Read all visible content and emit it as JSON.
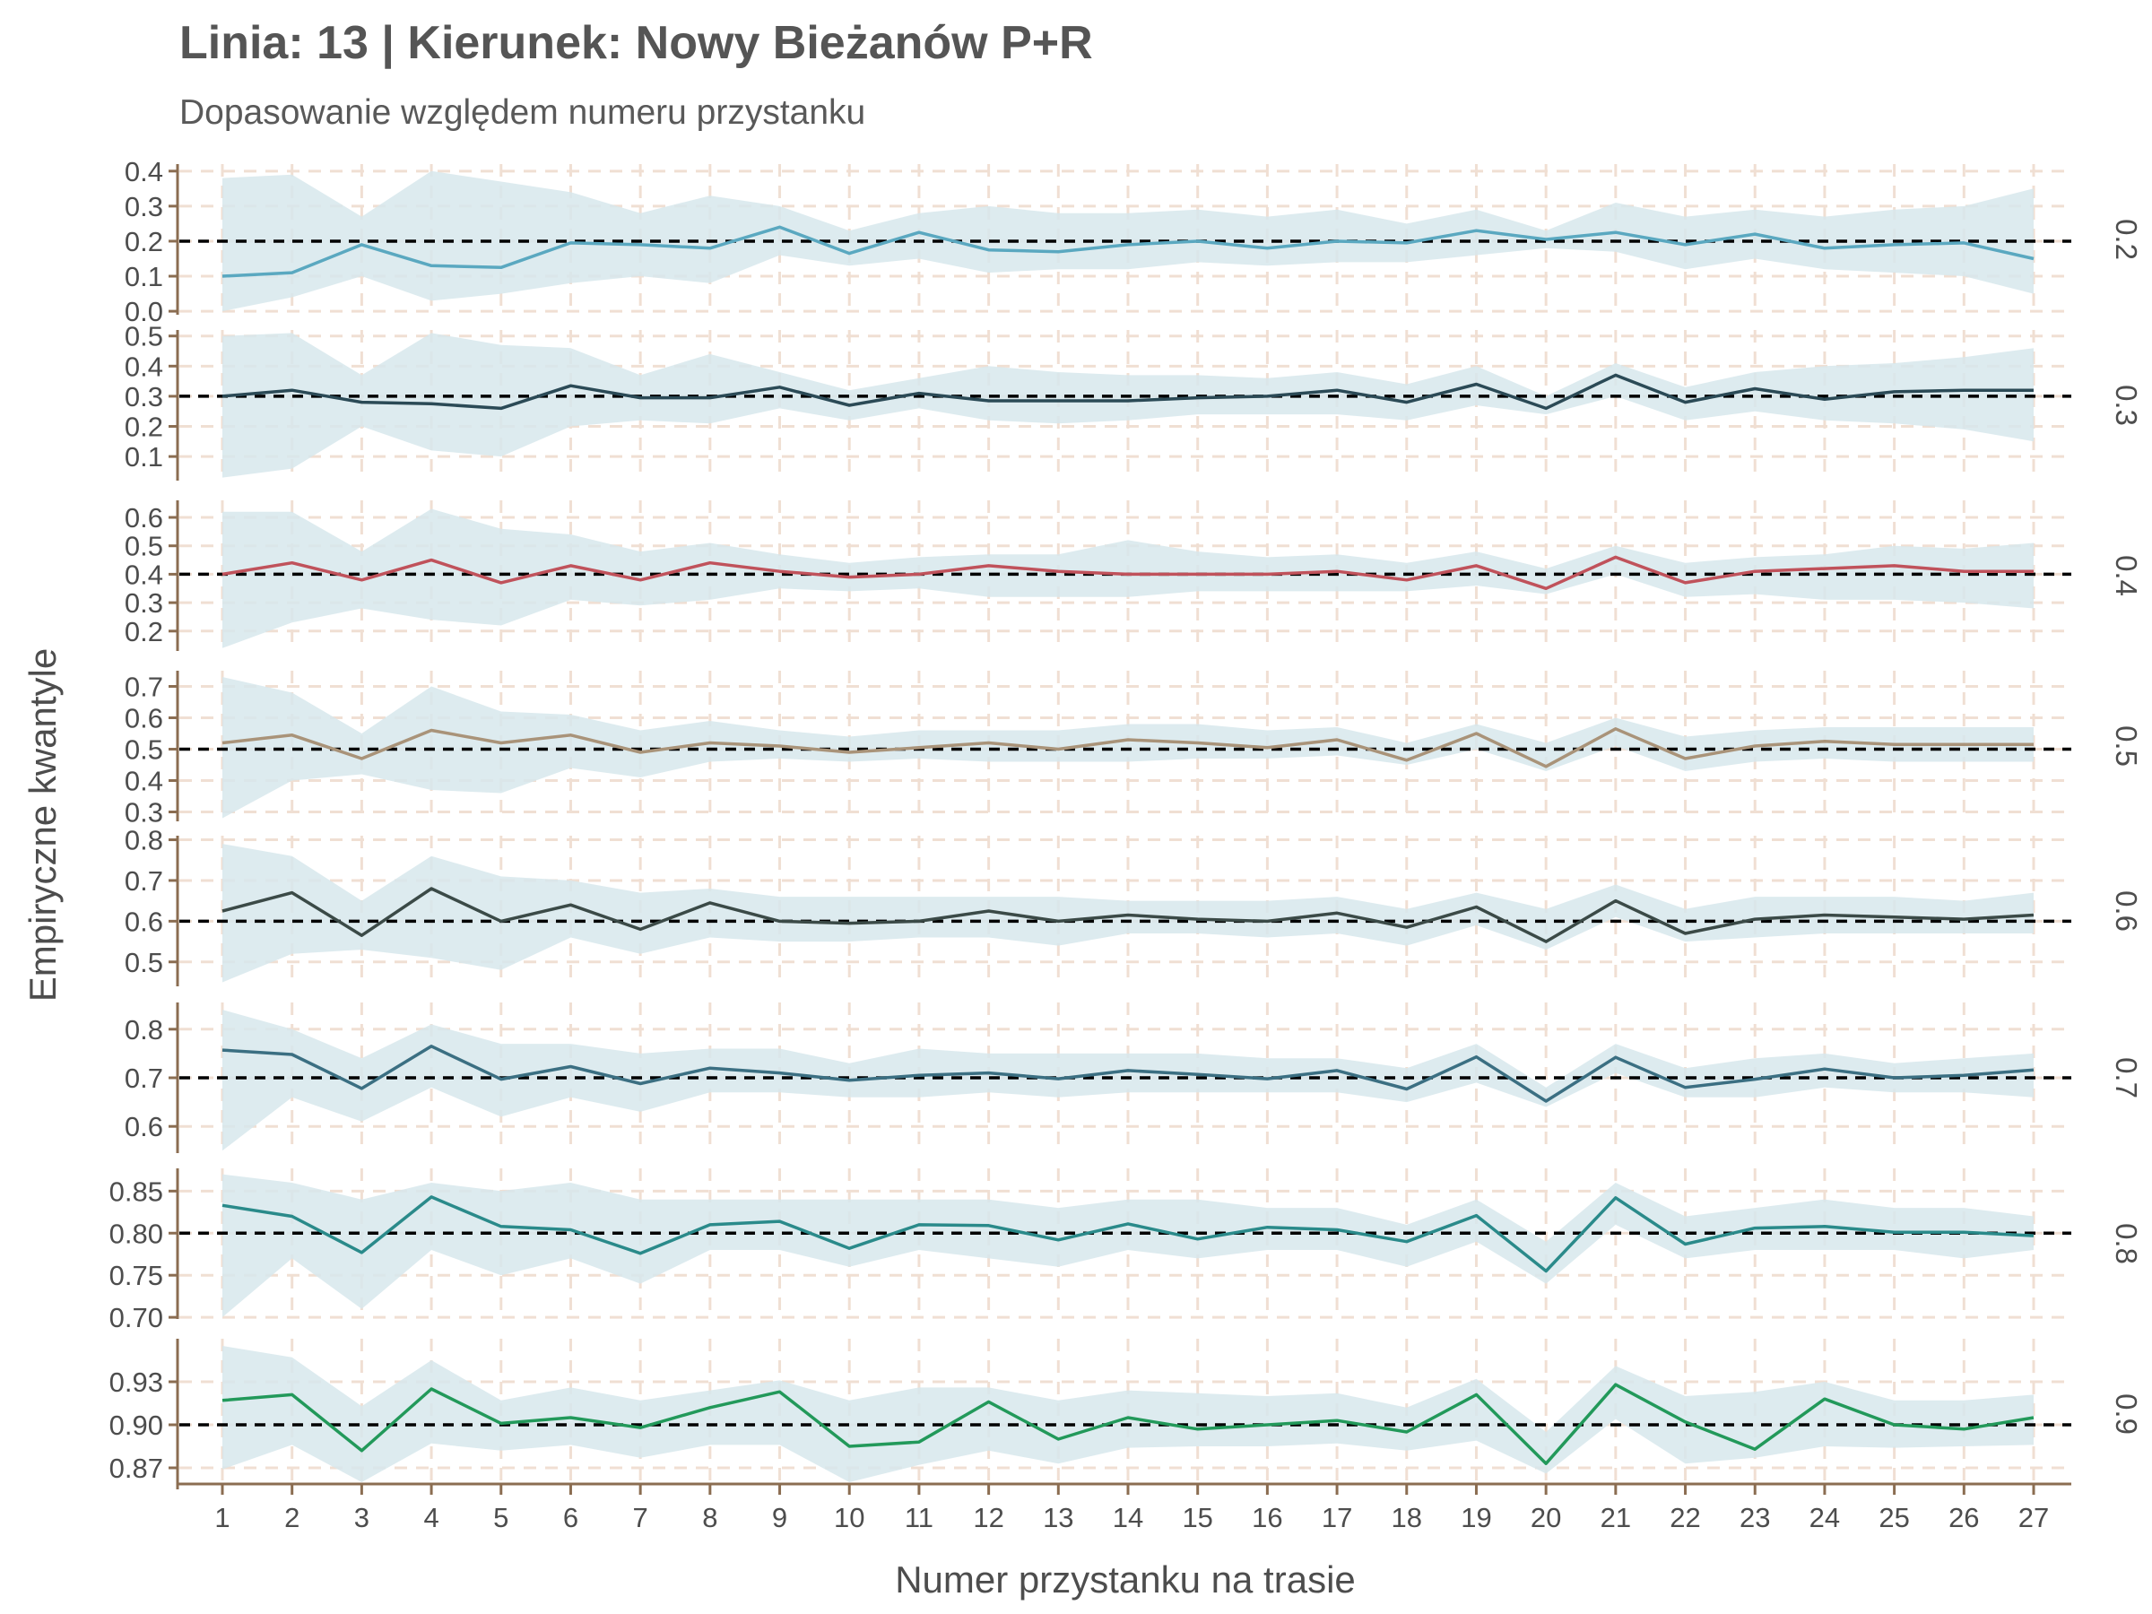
{
  "title": "Linia: 13 | Kierunek: Nowy Bieżanów P+R",
  "subtitle": "Dopasowanie względem numeru przystanku",
  "colors": {
    "band": "#d7e8ec",
    "reference_line": "#000000",
    "grid": "#f0dfd3",
    "axis": "#8b6d51",
    "text": "#4d4d4d"
  },
  "chart_data": {
    "type": "line",
    "xlabel": "Numer przystanku na trasie",
    "ylabel": "Empiryczne kwantyle",
    "x": [
      1,
      2,
      3,
      4,
      5,
      6,
      7,
      8,
      9,
      10,
      11,
      12,
      13,
      14,
      15,
      16,
      17,
      18,
      19,
      20,
      21,
      22,
      23,
      24,
      25,
      26,
      27
    ],
    "x_tick_labels": [
      "1",
      "2",
      "3",
      "4",
      "5",
      "6",
      "7",
      "8",
      "9",
      "10",
      "11",
      "12",
      "13",
      "14",
      "15",
      "16",
      "17",
      "18",
      "19",
      "20",
      "21",
      "22",
      "23",
      "24",
      "25",
      "26",
      "27"
    ],
    "grid": true,
    "legend": "none",
    "panels": [
      {
        "strip": "0.2",
        "reference": 0.2,
        "color": "#5aa8c0",
        "ylim": [
          -0.01,
          0.42
        ],
        "y_ticks": [
          0.0,
          0.1,
          0.2,
          0.3,
          0.4
        ],
        "y_tick_labels": [
          "0.0",
          "0.1",
          "0.2",
          "0.3",
          "0.4"
        ],
        "values": [
          0.1,
          0.11,
          0.19,
          0.13,
          0.125,
          0.195,
          0.19,
          0.18,
          0.24,
          0.165,
          0.225,
          0.175,
          0.17,
          0.19,
          0.2,
          0.18,
          0.2,
          0.195,
          0.23,
          0.205,
          0.225,
          0.19,
          0.22,
          0.18,
          0.19,
          0.195,
          0.15
        ],
        "lower": [
          0.0,
          0.04,
          0.1,
          0.03,
          0.05,
          0.08,
          0.1,
          0.08,
          0.16,
          0.13,
          0.15,
          0.11,
          0.12,
          0.12,
          0.14,
          0.13,
          0.14,
          0.14,
          0.16,
          0.18,
          0.17,
          0.12,
          0.15,
          0.12,
          0.11,
          0.1,
          0.05
        ],
        "upper": [
          0.38,
          0.39,
          0.27,
          0.4,
          0.37,
          0.34,
          0.28,
          0.33,
          0.3,
          0.23,
          0.28,
          0.3,
          0.28,
          0.28,
          0.29,
          0.27,
          0.29,
          0.25,
          0.29,
          0.23,
          0.31,
          0.27,
          0.29,
          0.27,
          0.29,
          0.3,
          0.35
        ]
      },
      {
        "strip": "0.3",
        "reference": 0.3,
        "color": "#2b4a56",
        "ylim": [
          0.02,
          0.52
        ],
        "y_ticks": [
          0.1,
          0.2,
          0.3,
          0.4,
          0.5
        ],
        "y_tick_labels": [
          "0.1",
          "0.2",
          "0.3",
          "0.4",
          "0.5"
        ],
        "values": [
          0.3,
          0.32,
          0.28,
          0.275,
          0.26,
          0.335,
          0.295,
          0.295,
          0.33,
          0.27,
          0.31,
          0.285,
          0.285,
          0.285,
          0.295,
          0.3,
          0.32,
          0.28,
          0.34,
          0.26,
          0.37,
          0.28,
          0.325,
          0.29,
          0.315,
          0.32,
          0.32
        ],
        "lower": [
          0.03,
          0.06,
          0.2,
          0.12,
          0.1,
          0.2,
          0.22,
          0.21,
          0.26,
          0.22,
          0.26,
          0.22,
          0.21,
          0.22,
          0.24,
          0.24,
          0.24,
          0.22,
          0.27,
          0.24,
          0.3,
          0.22,
          0.25,
          0.22,
          0.21,
          0.19,
          0.15
        ],
        "upper": [
          0.5,
          0.51,
          0.37,
          0.51,
          0.47,
          0.46,
          0.37,
          0.44,
          0.38,
          0.32,
          0.36,
          0.4,
          0.38,
          0.37,
          0.37,
          0.36,
          0.38,
          0.34,
          0.4,
          0.3,
          0.41,
          0.33,
          0.38,
          0.4,
          0.41,
          0.43,
          0.46
        ]
      },
      {
        "strip": "0.4",
        "reference": 0.4,
        "color": "#c0525b",
        "ylim": [
          0.13,
          0.66
        ],
        "y_ticks": [
          0.2,
          0.3,
          0.4,
          0.5,
          0.6
        ],
        "y_tick_labels": [
          "0.2",
          "0.3",
          "0.4",
          "0.5",
          "0.6"
        ],
        "values": [
          0.4,
          0.44,
          0.38,
          0.45,
          0.37,
          0.43,
          0.38,
          0.44,
          0.41,
          0.39,
          0.4,
          0.43,
          0.41,
          0.4,
          0.4,
          0.4,
          0.41,
          0.38,
          0.43,
          0.35,
          0.46,
          0.37,
          0.41,
          0.42,
          0.43,
          0.41,
          0.41
        ],
        "lower": [
          0.14,
          0.23,
          0.28,
          0.24,
          0.22,
          0.31,
          0.29,
          0.31,
          0.35,
          0.34,
          0.35,
          0.32,
          0.32,
          0.32,
          0.34,
          0.34,
          0.34,
          0.34,
          0.36,
          0.33,
          0.4,
          0.32,
          0.33,
          0.31,
          0.31,
          0.3,
          0.28
        ],
        "upper": [
          0.62,
          0.62,
          0.48,
          0.63,
          0.56,
          0.54,
          0.48,
          0.51,
          0.47,
          0.44,
          0.46,
          0.47,
          0.47,
          0.52,
          0.48,
          0.46,
          0.47,
          0.44,
          0.48,
          0.42,
          0.5,
          0.44,
          0.46,
          0.47,
          0.5,
          0.49,
          0.51
        ]
      },
      {
        "strip": "0.5",
        "reference": 0.5,
        "color": "#a99379",
        "ylim": [
          0.27,
          0.75
        ],
        "y_ticks": [
          0.3,
          0.4,
          0.5,
          0.6,
          0.7
        ],
        "y_tick_labels": [
          "0.3",
          "0.4",
          "0.5",
          "0.6",
          "0.7"
        ],
        "values": [
          0.52,
          0.545,
          0.47,
          0.56,
          0.52,
          0.545,
          0.49,
          0.52,
          0.51,
          0.49,
          0.505,
          0.52,
          0.5,
          0.53,
          0.52,
          0.505,
          0.53,
          0.465,
          0.55,
          0.445,
          0.565,
          0.47,
          0.51,
          0.525,
          0.515,
          0.515,
          0.515
        ],
        "lower": [
          0.28,
          0.4,
          0.42,
          0.37,
          0.36,
          0.44,
          0.41,
          0.46,
          0.47,
          0.46,
          0.47,
          0.46,
          0.46,
          0.46,
          0.47,
          0.47,
          0.48,
          0.45,
          0.5,
          0.43,
          0.51,
          0.43,
          0.46,
          0.47,
          0.46,
          0.46,
          0.46
        ],
        "upper": [
          0.73,
          0.68,
          0.55,
          0.7,
          0.62,
          0.61,
          0.56,
          0.59,
          0.56,
          0.54,
          0.56,
          0.56,
          0.56,
          0.58,
          0.58,
          0.56,
          0.57,
          0.52,
          0.58,
          0.52,
          0.6,
          0.54,
          0.56,
          0.57,
          0.57,
          0.57,
          0.57
        ]
      },
      {
        "strip": "0.6",
        "reference": 0.6,
        "color": "#3b4a47",
        "ylim": [
          0.44,
          0.81
        ],
        "y_ticks": [
          0.5,
          0.6,
          0.7,
          0.8
        ],
        "y_tick_labels": [
          "0.5",
          "0.6",
          "0.7",
          "0.8"
        ],
        "values": [
          0.625,
          0.67,
          0.565,
          0.68,
          0.6,
          0.64,
          0.58,
          0.645,
          0.6,
          0.595,
          0.6,
          0.625,
          0.6,
          0.615,
          0.605,
          0.6,
          0.62,
          0.585,
          0.635,
          0.55,
          0.65,
          0.57,
          0.605,
          0.615,
          0.61,
          0.605,
          0.615
        ],
        "lower": [
          0.45,
          0.52,
          0.53,
          0.51,
          0.48,
          0.56,
          0.52,
          0.56,
          0.55,
          0.55,
          0.56,
          0.56,
          0.54,
          0.57,
          0.57,
          0.56,
          0.57,
          0.54,
          0.59,
          0.53,
          0.61,
          0.55,
          0.56,
          0.57,
          0.57,
          0.57,
          0.57
        ],
        "upper": [
          0.79,
          0.76,
          0.65,
          0.76,
          0.71,
          0.7,
          0.67,
          0.68,
          0.66,
          0.66,
          0.66,
          0.66,
          0.66,
          0.65,
          0.65,
          0.65,
          0.66,
          0.63,
          0.67,
          0.63,
          0.69,
          0.63,
          0.66,
          0.66,
          0.66,
          0.65,
          0.67
        ]
      },
      {
        "strip": "0.7",
        "reference": 0.7,
        "color": "#3b6f82",
        "ylim": [
          0.545,
          0.855
        ],
        "y_ticks": [
          0.6,
          0.7,
          0.8
        ],
        "y_tick_labels": [
          "0.6",
          "0.7",
          "0.8"
        ],
        "values": [
          0.757,
          0.748,
          0.678,
          0.765,
          0.697,
          0.723,
          0.688,
          0.72,
          0.71,
          0.695,
          0.705,
          0.71,
          0.698,
          0.715,
          0.707,
          0.698,
          0.715,
          0.677,
          0.743,
          0.652,
          0.742,
          0.68,
          0.697,
          0.718,
          0.7,
          0.705,
          0.716
        ],
        "lower": [
          0.55,
          0.66,
          0.61,
          0.68,
          0.62,
          0.66,
          0.63,
          0.67,
          0.67,
          0.66,
          0.66,
          0.67,
          0.66,
          0.67,
          0.67,
          0.67,
          0.67,
          0.65,
          0.69,
          0.64,
          0.71,
          0.66,
          0.66,
          0.68,
          0.67,
          0.67,
          0.66
        ],
        "upper": [
          0.84,
          0.8,
          0.74,
          0.81,
          0.77,
          0.77,
          0.75,
          0.76,
          0.76,
          0.73,
          0.76,
          0.75,
          0.75,
          0.75,
          0.75,
          0.74,
          0.74,
          0.72,
          0.77,
          0.68,
          0.77,
          0.72,
          0.74,
          0.75,
          0.73,
          0.74,
          0.75
        ]
      },
      {
        "strip": "0.8",
        "reference": 0.8,
        "color": "#2a8a8a",
        "ylim": [
          0.698,
          0.877
        ],
        "y_ticks": [
          0.7,
          0.75,
          0.8,
          0.85
        ],
        "y_tick_labels": [
          "0.70",
          "0.75",
          "0.80",
          "0.85"
        ],
        "values": [
          0.833,
          0.82,
          0.777,
          0.843,
          0.808,
          0.804,
          0.776,
          0.81,
          0.814,
          0.782,
          0.81,
          0.809,
          0.792,
          0.811,
          0.793,
          0.807,
          0.804,
          0.79,
          0.821,
          0.755,
          0.842,
          0.787,
          0.806,
          0.808,
          0.801,
          0.801,
          0.797
        ],
        "lower": [
          0.7,
          0.77,
          0.71,
          0.78,
          0.75,
          0.77,
          0.74,
          0.78,
          0.78,
          0.76,
          0.78,
          0.77,
          0.76,
          0.78,
          0.77,
          0.78,
          0.78,
          0.76,
          0.79,
          0.74,
          0.81,
          0.77,
          0.78,
          0.78,
          0.78,
          0.77,
          0.78
        ],
        "upper": [
          0.87,
          0.86,
          0.84,
          0.86,
          0.85,
          0.86,
          0.84,
          0.84,
          0.84,
          0.84,
          0.84,
          0.84,
          0.83,
          0.84,
          0.84,
          0.83,
          0.83,
          0.81,
          0.84,
          0.79,
          0.86,
          0.82,
          0.83,
          0.84,
          0.83,
          0.83,
          0.82
        ]
      },
      {
        "strip": "0.9",
        "reference": 0.9,
        "color": "#22995a",
        "ylim": [
          0.855,
          0.96
        ],
        "y_ticks": [
          0.87,
          0.9,
          0.93
        ],
        "y_tick_labels": [
          "0.87",
          "0.90",
          "0.93"
        ],
        "values": [
          0.917,
          0.921,
          0.882,
          0.925,
          0.901,
          0.905,
          0.898,
          0.912,
          0.923,
          0.885,
          0.888,
          0.916,
          0.89,
          0.905,
          0.897,
          0.9,
          0.903,
          0.895,
          0.921,
          0.873,
          0.928,
          0.902,
          0.883,
          0.918,
          0.9,
          0.897,
          0.905
        ],
        "lower": [
          0.869,
          0.886,
          0.86,
          0.887,
          0.882,
          0.886,
          0.877,
          0.886,
          0.886,
          0.86,
          0.872,
          0.882,
          0.873,
          0.884,
          0.885,
          0.885,
          0.887,
          0.882,
          0.889,
          0.866,
          0.904,
          0.873,
          0.877,
          0.885,
          0.884,
          0.885,
          0.886
        ],
        "upper": [
          0.955,
          0.947,
          0.913,
          0.945,
          0.917,
          0.926,
          0.917,
          0.924,
          0.931,
          0.917,
          0.926,
          0.926,
          0.917,
          0.924,
          0.922,
          0.92,
          0.922,
          0.912,
          0.932,
          0.895,
          0.941,
          0.92,
          0.923,
          0.93,
          0.917,
          0.917,
          0.921
        ]
      }
    ]
  }
}
